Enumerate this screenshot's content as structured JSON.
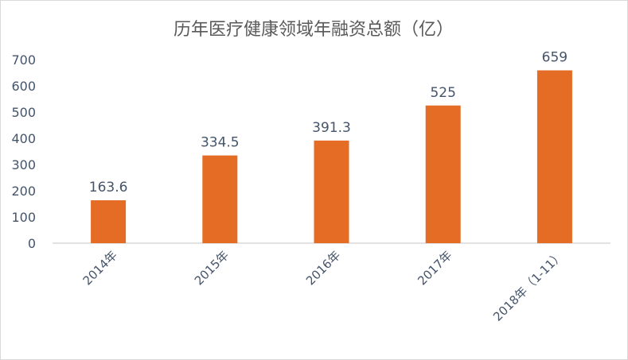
{
  "chart_data": {
    "type": "bar",
    "title": "历年医疗健康领域年融资总额（亿）",
    "categories": [
      "2014年",
      "2015年",
      "2016年",
      "2017年",
      "2018年（1-11）"
    ],
    "values": [
      163.6,
      334.5,
      391.3,
      525,
      659
    ],
    "data_labels": [
      "163.6",
      "334.5",
      "391.3",
      "525",
      "659"
    ],
    "xlabel": "",
    "ylabel": "",
    "ylim": [
      0,
      700
    ],
    "yticks": [
      0,
      100,
      200,
      300,
      400,
      500,
      600,
      700
    ],
    "grid": false,
    "legend": "none",
    "colors": {
      "bar": "#E46C25",
      "text": "#44546A",
      "axis": "#D9D9D9"
    }
  }
}
